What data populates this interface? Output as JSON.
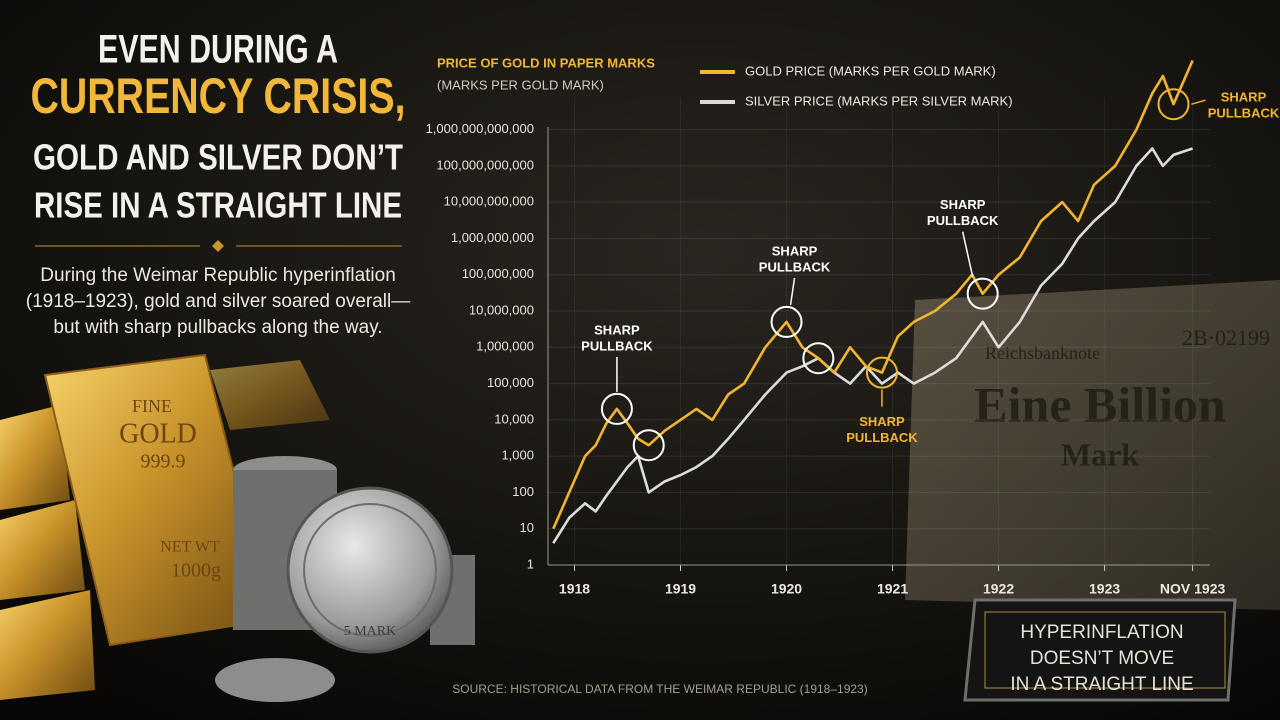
{
  "headline": [
    "EVEN DURING A",
    "CURRENCY CRISIS,",
    "GOLD AND SILVER DON’T",
    "RISE IN A STRAIGHT LINE"
  ],
  "intro": [
    "During the Weimar Republic hyperinflation",
    "(1918–1923), gold and silver soared overall—",
    "but with sharp pullbacks along the way."
  ],
  "gold_bar": [
    "FINE",
    "GOLD",
    "999.9",
    "NET WT",
    "1000g"
  ],
  "coin": "5 MARK",
  "banknote": [
    "2B·02199",
    "Reichsbanknote",
    "Eine Billion",
    "Mark"
  ],
  "badge": [
    "HYPERINFLATION",
    "DOESN’T MOVE",
    "IN A STRAIGHT LINE"
  ],
  "source": "SOURCE: HISTORICAL DATA FROM THE WEIMAR REPUBLIC (1918–1923)",
  "chart_data": {
    "type": "line",
    "title": "PRICE OF GOLD IN PAPER MARKS",
    "y_label": "(MARKS PER GOLD MARK)",
    "log_y": true,
    "grid": true,
    "x": [
      1917.8,
      1917.95,
      1918.1,
      1918.2,
      1918.3,
      1918.4,
      1918.5,
      1918.6,
      1918.7,
      1918.85,
      1919.0,
      1919.15,
      1919.3,
      1919.45,
      1919.6,
      1919.8,
      1920.0,
      1920.15,
      1920.3,
      1920.45,
      1920.6,
      1920.75,
      1920.9,
      1921.05,
      1921.2,
      1921.4,
      1921.6,
      1921.75,
      1921.85,
      1922.0,
      1922.2,
      1922.4,
      1922.6,
      1922.75,
      1922.9,
      1923.1,
      1923.3,
      1923.45,
      1923.55,
      1923.65,
      1923.83
    ],
    "series": [
      {
        "name": "GOLD PRICE (MARKS PER GOLD MARK)",
        "color": "#f2b52e",
        "values": [
          10,
          100,
          1000,
          2000,
          8000,
          20000,
          8000,
          3000,
          2000,
          5000,
          10000,
          20000,
          10000,
          50000,
          100000,
          1000000,
          5000000,
          1000000,
          500000,
          200000,
          1000000,
          300000,
          200000,
          2000000,
          5000000,
          10000000,
          30000000,
          100000000,
          30000000,
          100000000,
          300000000,
          3000000000,
          10000000000,
          3000000000,
          30000000000,
          100000000000,
          1000000000000,
          10000000000000,
          30000000000000,
          5000000000000,
          80000000000000
        ]
      },
      {
        "name": "SILVER PRICE (MARKS PER SILVER MARK)",
        "color": "#dcdcdc",
        "values": [
          4,
          20,
          50,
          30,
          80,
          200,
          500,
          1000,
          100,
          200,
          300,
          500,
          1000,
          3000,
          10000,
          50000,
          200000,
          300000,
          500000,
          200000,
          100000,
          300000,
          100000,
          200000,
          100000,
          200000,
          500000,
          2000000,
          5000000,
          1000000,
          5000000,
          50000000,
          200000000,
          1000000000,
          3000000000,
          10000000000,
          100000000000,
          300000000000,
          100000000000,
          200000000000,
          300000000000
        ]
      }
    ],
    "xlim": [
      1917.75,
      1923.9
    ],
    "xticks": [
      1918,
      1919,
      1920,
      1921,
      1922,
      1923,
      {
        "value": 1923.83,
        "label": "NOV 1923"
      }
    ],
    "ylim": [
      1,
      100000000000000
    ],
    "yticks": [
      1,
      10,
      100,
      {
        "value": 1000,
        "label": "1,000"
      },
      {
        "value": 10000,
        "label": "10,000"
      },
      {
        "value": 100000,
        "label": "100,000"
      },
      {
        "value": 1000000,
        "label": "1,000,000"
      },
      {
        "value": 10000000,
        "label": "10,000,000"
      },
      {
        "value": 100000000,
        "label": "100,000,000"
      },
      {
        "value": 1000000000,
        "label": "1,000,000,000"
      },
      {
        "value": 10000000000,
        "label": "10,000,000,000"
      },
      {
        "value": 100000000000,
        "label": "100,000,000,000"
      },
      {
        "value": 1000000000000,
        "label": "1,000,000,000,000"
      }
    ],
    "annotations": [
      [
        "SHARP",
        "PULLBACK"
      ],
      [
        "SHARP",
        "PULLBACK"
      ],
      [
        "SHARP",
        "PULLBACK"
      ],
      [
        "SHARP",
        "PULLBACK"
      ],
      [
        "SHARP",
        "PULLBACK"
      ]
    ]
  }
}
